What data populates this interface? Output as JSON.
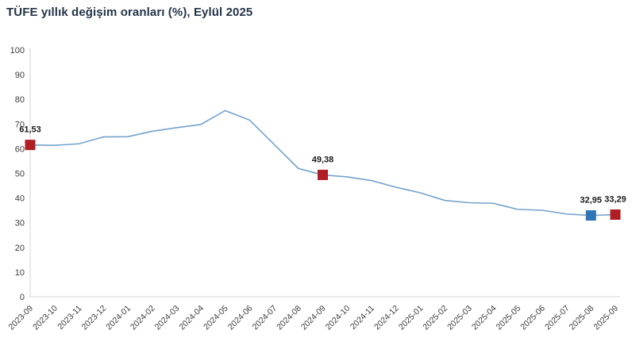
{
  "chart_data": {
    "type": "line",
    "title": "TÜFE yıllık değişim oranları (%), Eylül 2025",
    "xlabel": "",
    "ylabel": "",
    "ylim": [
      0,
      100
    ],
    "y_tick_step": 10,
    "y_tick_labels": [
      "0",
      "10",
      "20",
      "30",
      "40",
      "50",
      "60",
      "70",
      "80",
      "90",
      "100"
    ],
    "grid": false,
    "categories": [
      "2023-09",
      "2023-10",
      "2023-11",
      "2023-12",
      "2024-01",
      "2024-02",
      "2024-03",
      "2024-04",
      "2024-05",
      "2024-06",
      "2024-07",
      "2024-08",
      "2024-09",
      "2024-10",
      "2024-11",
      "2024-12",
      "2025-01",
      "2025-02",
      "2025-03",
      "2025-04",
      "2025-05",
      "2025-06",
      "2025-07",
      "2025-08",
      "2025-09"
    ],
    "values": [
      61.53,
      61.36,
      61.98,
      64.77,
      64.86,
      67.07,
      68.5,
      69.8,
      75.45,
      71.6,
      61.78,
      51.97,
      49.38,
      48.58,
      47.09,
      44.38,
      42.12,
      39.05,
      38.1,
      37.86,
      35.41,
      35.05,
      33.52,
      32.95,
      33.29
    ],
    "annotations": [
      {
        "index": 0,
        "label": "61,53",
        "color": "#AF1E23"
      },
      {
        "index": 12,
        "label": "49,38",
        "color": "#AF1E23"
      },
      {
        "index": 23,
        "label": "32,95",
        "color": "#2E75B6"
      },
      {
        "index": 24,
        "label": "33,29",
        "color": "#AF1E23"
      }
    ],
    "colors": {
      "line": "#74A2CC",
      "marker_red": "#AF1E23",
      "marker_blue": "#2E75B6",
      "axis": "#D6D6D6",
      "tick_text": "#3C3C3C",
      "data_label_text": "#1A1A1A",
      "title_text": "#243447"
    },
    "legend": "none"
  }
}
